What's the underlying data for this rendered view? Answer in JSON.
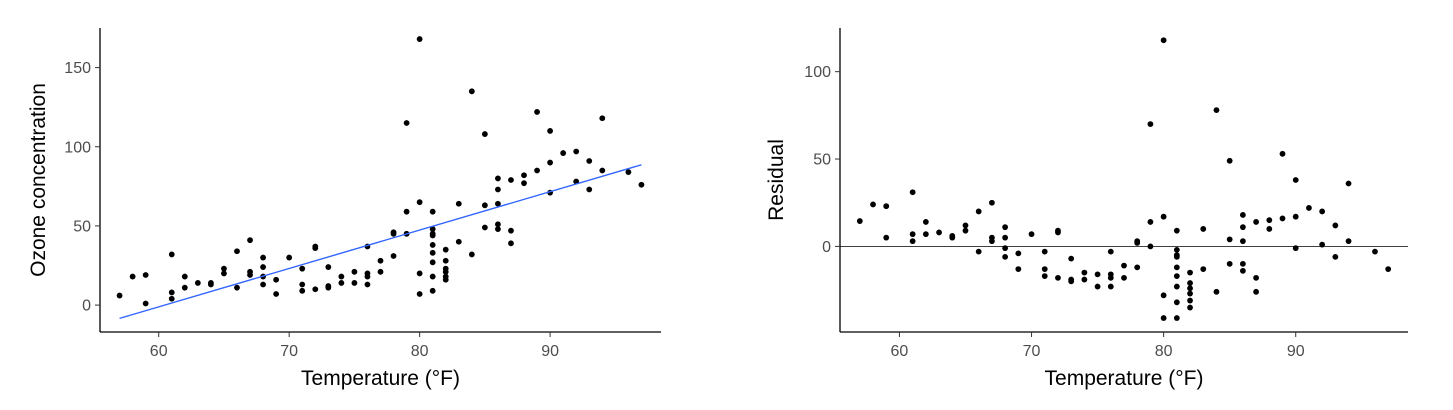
{
  "chart_data": [
    {
      "type": "scatter",
      "title": "",
      "xlabel": "Temperature (°F)",
      "ylabel": "Ozone concentration",
      "xlim": [
        55.5,
        98.5
      ],
      "ylim": [
        -17,
        175
      ],
      "xticks": [
        60,
        70,
        80,
        90
      ],
      "yticks": [
        0,
        50,
        100,
        150
      ],
      "grid": false,
      "point_color": "#000000",
      "fit_line": {
        "x": [
          57,
          97
        ],
        "y": [
          -8.4,
          88.6
        ],
        "color": "#3366ff"
      },
      "series": [
        {
          "x": [
            57,
            58,
            59,
            59,
            61,
            61,
            61,
            62,
            62,
            63,
            64,
            64,
            65,
            65,
            66,
            66,
            67,
            67,
            67,
            68,
            68,
            68,
            68,
            69,
            69,
            70,
            71,
            71,
            71,
            72,
            72,
            72,
            73,
            73,
            73,
            74,
            74,
            75,
            75,
            76,
            76,
            76,
            76,
            77,
            77,
            78,
            78,
            78,
            79,
            79,
            79,
            80,
            80,
            80,
            80,
            81,
            81,
            81,
            81,
            81,
            81,
            81,
            81,
            81,
            82,
            82,
            82,
            82,
            82,
            82,
            83,
            83,
            84,
            84,
            85,
            85,
            85,
            86,
            86,
            86,
            86,
            86,
            87,
            87,
            87,
            88,
            88,
            89,
            89,
            90,
            90,
            90,
            91,
            92,
            92,
            93,
            93,
            94,
            94,
            96,
            97
          ],
          "y": [
            6,
            18,
            19,
            1,
            32,
            8,
            4,
            11,
            18,
            14,
            13,
            14,
            23,
            20,
            34,
            11,
            41,
            19,
            21,
            30,
            24,
            13,
            18,
            16,
            7,
            30,
            23,
            13,
            9,
            37,
            36,
            10,
            24,
            11,
            12,
            14,
            18,
            21,
            14,
            37,
            20,
            18,
            13,
            28,
            21,
            46,
            45,
            31,
            115,
            59,
            45,
            65,
            20,
            7,
            168,
            59,
            48,
            44,
            38,
            33,
            27,
            18,
            9,
            45,
            35,
            23,
            18,
            21,
            16,
            28,
            64,
            40,
            135,
            32,
            108,
            63,
            49,
            80,
            73,
            64,
            51,
            48,
            79,
            47,
            39,
            82,
            77,
            122,
            85,
            110,
            90,
            71,
            96,
            97,
            78,
            91,
            73,
            118,
            85,
            84,
            76
          ]
        }
      ]
    },
    {
      "type": "scatter",
      "title": "",
      "xlabel": "Temperature (°F)",
      "ylabel": "Residual",
      "xlim": [
        55.5,
        98.5
      ],
      "ylim": [
        -49,
        125
      ],
      "xticks": [
        60,
        70,
        80,
        90
      ],
      "yticks": [
        0,
        50,
        100
      ],
      "grid": false,
      "point_color": "#000000",
      "reference_line": {
        "y": 0,
        "color": "#000000"
      },
      "series": [
        {
          "x": [
            57,
            58,
            59,
            59,
            61,
            61,
            61,
            62,
            62,
            63,
            64,
            64,
            65,
            65,
            66,
            66,
            67,
            67,
            67,
            68,
            68,
            68,
            68,
            69,
            69,
            70,
            71,
            71,
            71,
            72,
            72,
            72,
            73,
            73,
            73,
            74,
            74,
            75,
            75,
            76,
            76,
            76,
            76,
            77,
            77,
            78,
            78,
            78,
            79,
            79,
            79,
            80,
            80,
            80,
            80,
            81,
            81,
            81,
            81,
            81,
            81,
            81,
            81,
            81,
            82,
            82,
            82,
            82,
            82,
            82,
            83,
            83,
            84,
            84,
            85,
            85,
            85,
            86,
            86,
            86,
            86,
            86,
            87,
            87,
            87,
            88,
            88,
            89,
            89,
            90,
            90,
            90,
            91,
            92,
            92,
            93,
            93,
            94,
            94,
            96,
            97
          ],
          "y": [
            14.5,
            24,
            23,
            5,
            31,
            7,
            3,
            14,
            7,
            8,
            5,
            6,
            12,
            9,
            20,
            -3,
            25,
            3,
            5,
            11,
            5,
            -6,
            -1,
            -4,
            -13,
            7,
            -3,
            -13,
            -17,
            9,
            8,
            -18,
            -7,
            -20,
            -19,
            -19,
            -15,
            -16,
            -23,
            -3,
            -16,
            -18,
            -23,
            -11,
            -18,
            3,
            2,
            -12,
            70,
            14,
            0,
            17,
            -28,
            -41,
            118,
            9,
            -2,
            -6,
            -12,
            -17,
            -23,
            -32,
            -41,
            -5,
            -15,
            -21,
            -27,
            -31,
            -35,
            -24,
            10,
            -13,
            78,
            -26,
            49,
            4,
            -10,
            18,
            11,
            3,
            -10,
            -14,
            14,
            -18,
            -26,
            15,
            10,
            53,
            16,
            38,
            17,
            -1,
            22,
            20,
            1,
            12,
            -6,
            36,
            3,
            -3,
            -13
          ]
        }
      ]
    }
  ]
}
